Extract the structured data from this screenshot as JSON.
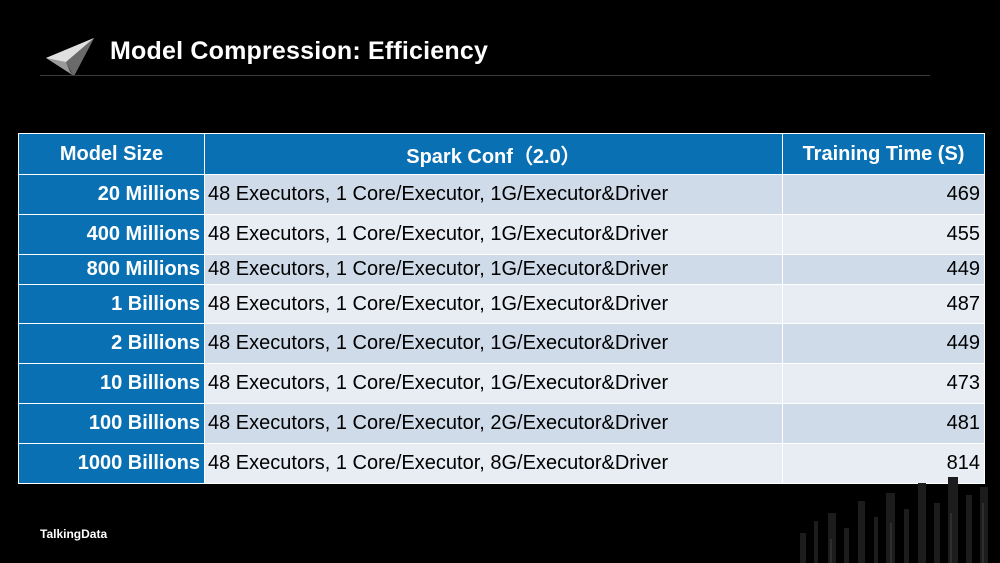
{
  "slide": {
    "title": "Model Compression: Efficiency",
    "brand": "TalkingData"
  },
  "table": {
    "headers": [
      "Model Size",
      "Spark Conf（2.0）",
      "Training Time (S)"
    ],
    "rows": [
      {
        "size": "20 Millions",
        "conf": "48 Executors, 1 Core/Executor, 1G/Executor&Driver",
        "time": "469"
      },
      {
        "size": "400 Millions",
        "conf": "48 Executors, 1 Core/Executor, 1G/Executor&Driver",
        "time": "455"
      },
      {
        "size": "800 Millions",
        "conf": "48 Executors, 1 Core/Executor, 1G/Executor&Driver",
        "time": "449"
      },
      {
        "size": "1 Billions",
        "conf": "48 Executors, 1 Core/Executor, 1G/Executor&Driver",
        "time": "487"
      },
      {
        "size": "2 Billions",
        "conf": "48 Executors, 1 Core/Executor, 1G/Executor&Driver",
        "time": "449"
      },
      {
        "size": "10 Billions",
        "conf": "48 Executors, 1 Core/Executor, 1G/Executor&Driver",
        "time": "473"
      },
      {
        "size": "100 Billions",
        "conf": "48 Executors, 1 Core/Executor, 2G/Executor&Driver",
        "time": "481"
      },
      {
        "size": "1000 Billions",
        "conf": "48 Executors, 1 Core/Executor, 8G/Executor&Driver",
        "time": "814"
      }
    ]
  },
  "colors": {
    "header_blue": "#0a70b4",
    "row_light": "#e8edf4",
    "row_dark": "#cfdbe9",
    "background": "#000000"
  }
}
